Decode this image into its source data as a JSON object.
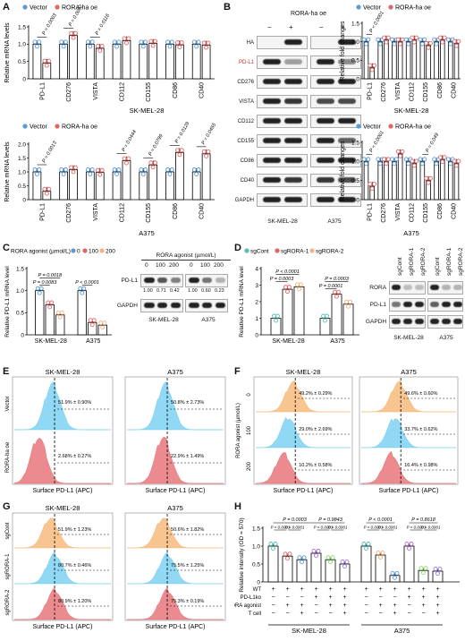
{
  "panel_labels": {
    "A": "A",
    "B": "B",
    "C": "C",
    "D": "D",
    "E": "E",
    "F": "F",
    "G": "G",
    "H": "H"
  },
  "legend": {
    "vector": "Vector",
    "rora_oe": "RORA-ha oe",
    "rora_agonist": "RORA agonist (µmol/L)",
    "dose0": "0",
    "dose100": "100",
    "dose200": "200",
    "sgcont": "sgCont",
    "sgrora1": "sgRORA-1",
    "sgrora2": "sgRORA-2"
  },
  "colors": {
    "vector": "#5b9bd5",
    "oe": "#e06666",
    "dose0": "#5b9bd5",
    "dose100": "#e06666",
    "dose200": "#f4b183",
    "sg0": "#5bbfb5",
    "sg1": "#e06666",
    "sg2": "#f4b183",
    "hist_vec": "#6ccbf0",
    "hist_oe": "#e5646a",
    "hist_orange": "#f5b26b"
  },
  "A": {
    "ylabel": "Relative mRNA levels",
    "genes": [
      "PD-L1",
      "CD276",
      "VISTA",
      "CD112",
      "CD155",
      "CD86",
      "CD40"
    ],
    "top": {
      "cell": "SK-MEL-28",
      "ylim": [
        0,
        1.5
      ],
      "ticks": [
        "0",
        "0.5",
        "1.0",
        "1.5"
      ],
      "vector": [
        1.0,
        1.0,
        1.0,
        1.0,
        1.0,
        1.0,
        1.0
      ],
      "oe": [
        0.45,
        1.25,
        0.88,
        1.1,
        1.02,
        0.98,
        0.97
      ],
      "pvals": [
        {
          "i": 0,
          "t": "P = 0.0003"
        },
        {
          "i": 1,
          "t": "P = 0.0097"
        },
        {
          "i": 2,
          "t": "P = 0.0116"
        }
      ]
    },
    "bottom": {
      "cell": "A375",
      "ylim": [
        0,
        2.0
      ],
      "ticks": [
        "0",
        "0.5",
        "1.0",
        "1.5",
        "2.0"
      ],
      "vector": [
        1.0,
        1.0,
        1.0,
        1.0,
        1.0,
        1.0,
        1.0
      ],
      "oe": [
        0.3,
        1.08,
        0.98,
        1.4,
        1.25,
        1.7,
        1.65
      ],
      "pvals": [
        {
          "i": 0,
          "t": "P = 0.0013"
        },
        {
          "i": 3,
          "t": "P = 0.0444"
        },
        {
          "i": 4,
          "t": "P = 0.0799"
        },
        {
          "i": 5,
          "t": "P = 0.0129"
        },
        {
          "i": 6,
          "t": "P = 0.0455"
        }
      ]
    }
  },
  "B": {
    "header": "RORA-ha oe",
    "signs": [
      "−",
      "+",
      "−",
      "+"
    ],
    "rows": [
      "HA",
      "PD-L1",
      "CD276",
      "VISTA",
      "CD112",
      "CD155",
      "CD86",
      "CD40",
      "GAPDH"
    ],
    "cells": [
      "SK-MEL-28",
      "A375"
    ],
    "ylabel": "Relative fold changes",
    "genes": [
      "PD-L1",
      "CD276",
      "VISTA",
      "CD112",
      "CD155",
      "CD86",
      "CD40"
    ],
    "top": {
      "cell": "SK-MEL-28",
      "ylim": [
        0,
        1.5
      ],
      "ticks": [
        "0",
        "0.5",
        "1.0",
        "1.5"
      ],
      "vector": [
        1.0,
        1.0,
        1.0,
        1.0,
        1.0,
        1.0,
        1.0
      ],
      "oe": [
        0.3,
        1.05,
        1.0,
        1.05,
        0.9,
        1.05,
        0.95
      ],
      "pvals": [
        {
          "i": 0,
          "t": "P < 0.0001"
        }
      ]
    },
    "bottom": {
      "cell": "A375",
      "ylim": [
        0,
        1.5
      ],
      "ticks": [
        "0",
        "0.5",
        "1.0",
        "1.5"
      ],
      "vector": [
        1.0,
        1.0,
        1.0,
        1.0,
        1.0,
        1.0,
        1.0
      ],
      "oe": [
        0.35,
        1.0,
        1.2,
        0.95,
        0.5,
        1.05,
        0.95
      ],
      "pvals": [
        {
          "i": 0,
          "t": "P < 0.0001"
        },
        {
          "i": 4,
          "t": "P = 0.049"
        }
      ]
    }
  },
  "C": {
    "ylabel": "Relative PD-L1 mRNA level",
    "ylim": [
      0,
      1.5
    ],
    "ticks": [
      "0",
      "0.5",
      "1.0",
      "1.5"
    ],
    "groups": [
      "SK-MEL-28",
      "A375"
    ],
    "values": [
      [
        1.0,
        0.68,
        0.45
      ],
      [
        1.0,
        0.28,
        0.22
      ]
    ],
    "pvals": [
      {
        "g": 0,
        "t": "P = 0.0018",
        "lvl": 2
      },
      {
        "g": 0,
        "t": "P = 0.0083",
        "lvl": 1
      },
      {
        "g": 1,
        "t": "P < 0.0001",
        "lvl": 1
      }
    ],
    "blot_header": "RORA agonist (µmol/L)",
    "doses": [
      "0",
      "100",
      "200",
      "0",
      "100",
      "200"
    ],
    "rows": [
      "PD-L1",
      "GAPDH"
    ],
    "quant": [
      "1.00",
      "0.71",
      "0.42",
      "1.00",
      "0.60",
      "0.23"
    ],
    "cells": [
      "SK-MEL-28",
      "A375"
    ]
  },
  "D": {
    "ylabel": "Relative PD-L1 mRNA level",
    "ylim": [
      0,
      4
    ],
    "ticks": [
      "0",
      "1",
      "2",
      "3",
      "4"
    ],
    "groups": [
      "SK-MEL-28",
      "A375"
    ],
    "values": [
      [
        1.0,
        2.75,
        2.9
      ],
      [
        1.0,
        2.45,
        1.85
      ]
    ],
    "pvals": [
      {
        "g": 0,
        "t": "P < 0.0001",
        "lvl": 2
      },
      {
        "g": 0,
        "t": "P = 0.0003",
        "lvl": 1
      },
      {
        "g": 1,
        "t": "P = 0.0003",
        "lvl": 2
      },
      {
        "g": 1,
        "t": "P = 0.0001",
        "lvl": 1
      }
    ],
    "lanes": [
      "sgCont",
      "sgRORA-1",
      "sgRORA-2",
      "sgCont",
      "sgRORA-1",
      "sgRORA-2"
    ],
    "rows": [
      "RORA",
      "PD-L1",
      "GAPDH"
    ],
    "cells": [
      "SK-MEL-28",
      "A375"
    ]
  },
  "E": {
    "cells": [
      "SK-MEL-28",
      "A375"
    ],
    "rows": [
      "Vector",
      "RORA-ha oe"
    ],
    "xlabel": "Surface PD-L1 (APC)",
    "pct": [
      [
        "51.9% ± 0.90%",
        "50.8% ± 2.73%"
      ],
      [
        "2.68% ± 0.27%",
        "22.9% ± 1.49%"
      ]
    ]
  },
  "F": {
    "cells": [
      "SK-MEL-28",
      "A375"
    ],
    "ylabel": "RORA agonist (µmol/L)",
    "rows": [
      "0",
      "100",
      "200"
    ],
    "xlabel": "Surface PD-L1 (APC)",
    "pct": [
      [
        "49.2% ± 0.29%",
        "49.6% ± 0.60%"
      ],
      [
        "29.0% ± 2.69%",
        "33.7% ± 0.62%"
      ],
      [
        "10.2% ± 0.58%",
        "16.4% ± 0.98%"
      ]
    ]
  },
  "G": {
    "cells": [
      "SK-MEL-28",
      "A375"
    ],
    "rows": [
      "sgCont",
      "sgRORA-1",
      "sgRORA-2"
    ],
    "xlabel": "Surface PD-L1 (APC)",
    "pct": [
      [
        "51.9% ± 1.23%",
        "50.6% ± 1.82%"
      ],
      [
        "80.7% ± 0.46%",
        "75.5% ± 1.25%"
      ],
      [
        "80.9% ± 1.20%",
        "75.3% ± 0.19%"
      ]
    ]
  },
  "H": {
    "ylabel": "Relative intensity (OD = 570)",
    "ylim": [
      0,
      1.5
    ],
    "ticks": [
      "0",
      "0.5",
      "1.0",
      "1.5"
    ],
    "values": [
      1.0,
      0.72,
      0.62,
      0.8,
      0.62,
      0.5,
      1.0,
      0.75,
      0.18,
      1.0,
      0.32,
      0.3
    ],
    "colors": [
      "#5bbfb5",
      "#e06666",
      "#5b9bd5",
      "#b074c6",
      "#8ed86a",
      "#9b7fd8",
      "#5bbfb5",
      "#f4b183",
      "#5b9bd5",
      "#b074c6",
      "#8ed86a",
      "#9b7fd8"
    ],
    "top_pvals": [
      {
        "a": 0,
        "b": 3,
        "t": "P = 0.0003"
      },
      {
        "a": 3,
        "b": 5,
        "t": "P = 0.9843"
      },
      {
        "a": 6,
        "b": 8,
        "t": "P < 0.0001"
      },
      {
        "a": 9,
        "b": 11,
        "t": "P = 0.8618"
      }
    ],
    "low_pvals": [
      {
        "a": 0,
        "b": 1,
        "t": "P < 0.0001"
      },
      {
        "a": 1,
        "b": 2,
        "t": "P < 0.0001"
      },
      {
        "a": 3,
        "b": 4,
        "t": "P < 0.0001"
      },
      {
        "a": 4,
        "b": 5,
        "t": "P < 0.0001"
      },
      {
        "a": 6,
        "b": 7,
        "t": "P < 0.0001"
      },
      {
        "a": 7,
        "b": 8,
        "t": "P < 0.0001"
      },
      {
        "a": 9,
        "b": 10,
        "t": "P < 0.0001"
      },
      {
        "a": 10,
        "b": 11,
        "t": "P < 0.0001"
      }
    ],
    "row_labels": [
      "WT",
      "PD-L1ko",
      "RORA agonist",
      "T cell"
    ],
    "signs": [
      [
        "+",
        "+",
        "+",
        "+",
        "+",
        "+",
        "+",
        "+",
        "+",
        "+",
        "+",
        "+"
      ],
      [
        "−",
        "−",
        "−",
        "+",
        "+",
        "+",
        "−",
        "−",
        "−",
        "+",
        "+",
        "+"
      ],
      [
        "−",
        "+",
        "+",
        "−",
        "+",
        "+",
        "−",
        "+",
        "+",
        "−",
        "+",
        "+"
      ],
      [
        "−",
        "−",
        "+",
        "−",
        "−",
        "+",
        "−",
        "−",
        "+",
        "−",
        "−",
        "+"
      ]
    ],
    "cells": [
      "SK-MEL-28",
      "A375"
    ]
  }
}
